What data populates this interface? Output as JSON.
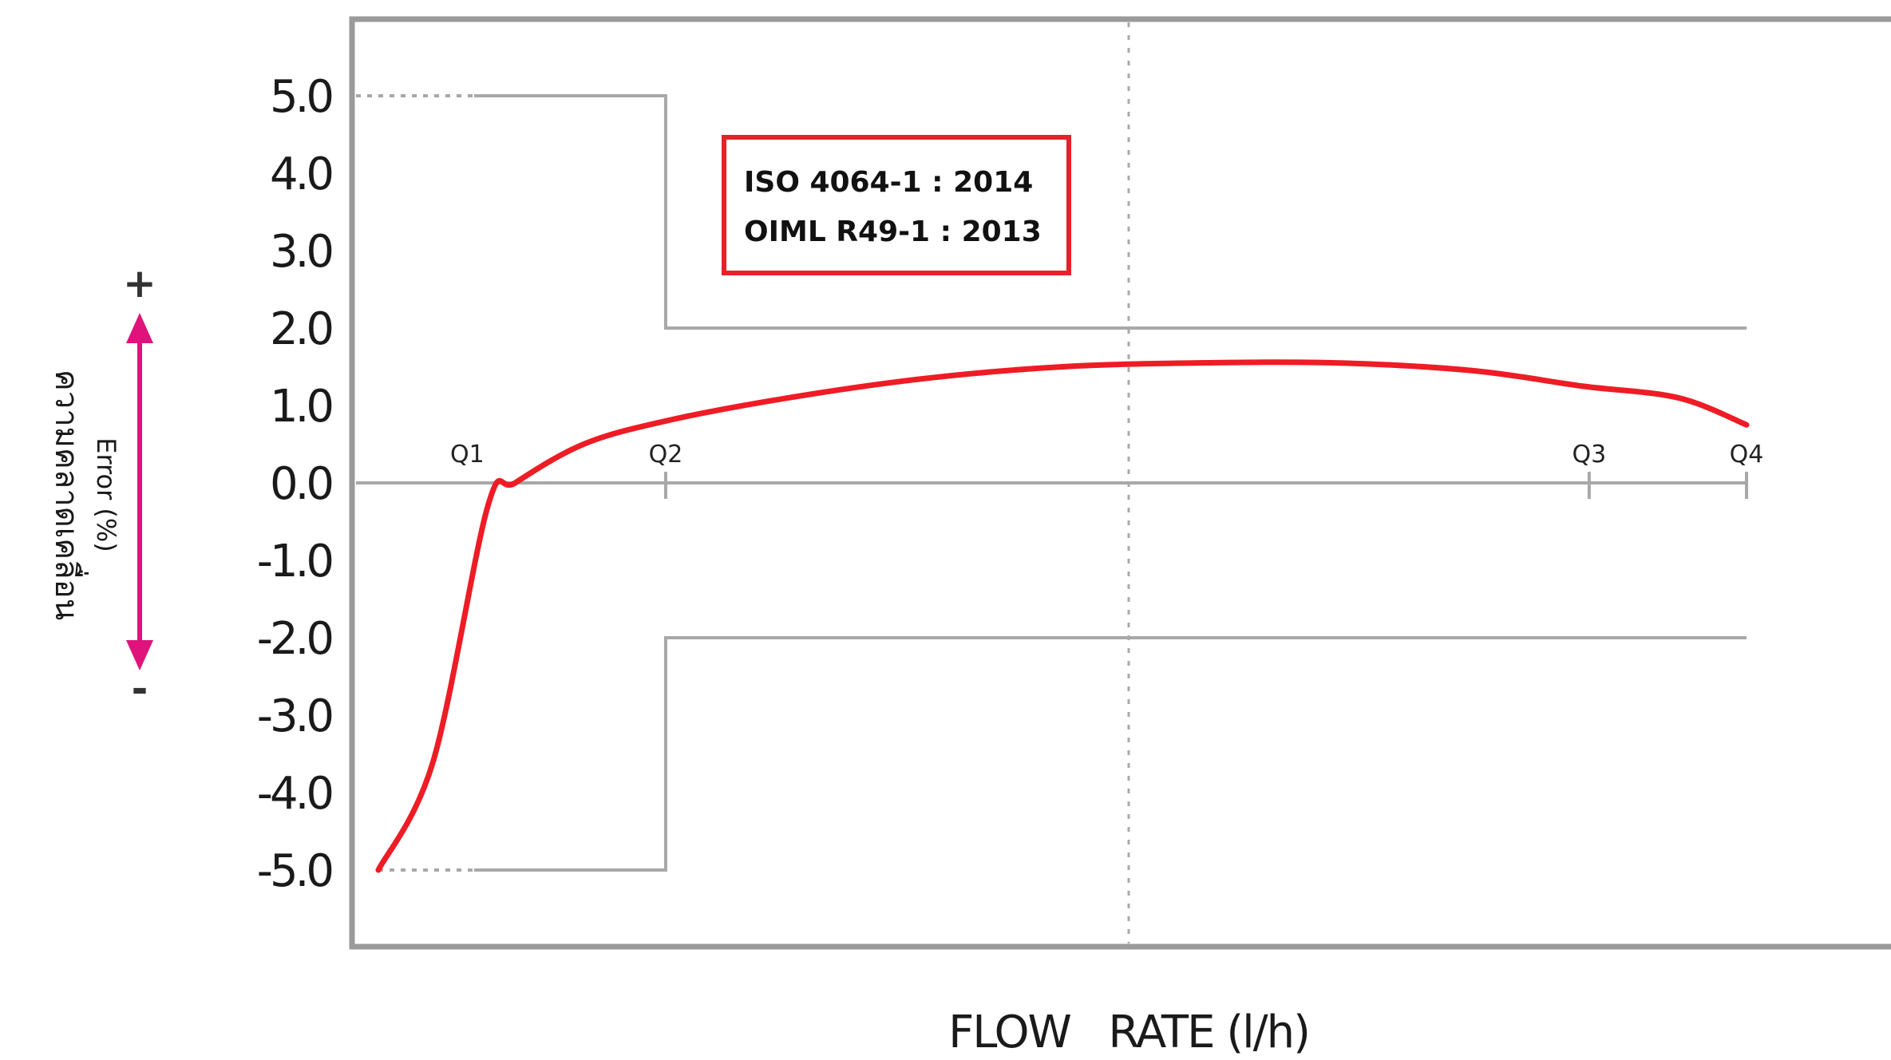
{
  "chart_data": {
    "type": "line",
    "xlabel": "FLOW   RATE (l/h)",
    "ylabel_line1": "ความคลาดเคลื่อน",
    "ylabel_line2": "Error (%)",
    "ylim": [
      -5,
      5
    ],
    "yticks": [
      "5.0",
      "4.0",
      "3.0",
      "2.0",
      "1.0",
      "0.0",
      "-1.0",
      "-2.0",
      "-3.0",
      "-4.0",
      "-5.0"
    ],
    "x_markers": [
      "Q1",
      "Q2",
      "Q3",
      "Q4"
    ],
    "series": [
      {
        "values": [
          {
            "x": 0.0,
            "y": -5.0
          },
          {
            "x": 0.04,
            "y": -3.6
          },
          {
            "x": 0.08,
            "y": -0.3
          },
          {
            "x": 0.1,
            "y": 0.0
          },
          {
            "x": 0.15,
            "y": 0.5
          },
          {
            "x": 0.21,
            "y": 0.8
          },
          {
            "x": 0.3,
            "y": 1.1
          },
          {
            "x": 0.4,
            "y": 1.35
          },
          {
            "x": 0.5,
            "y": 1.5
          },
          {
            "x": 0.6,
            "y": 1.55
          },
          {
            "x": 0.7,
            "y": 1.55
          },
          {
            "x": 0.8,
            "y": 1.45
          },
          {
            "x": 0.88,
            "y": 1.25
          },
          {
            "x": 0.95,
            "y": 1.1
          },
          {
            "x": 1.0,
            "y": 0.75
          }
        ]
      }
    ],
    "mpe_upper": [
      {
        "x": 0.0,
        "y": 5.0
      },
      {
        "x": 0.21,
        "y": 5.0
      },
      {
        "x": 0.21,
        "y": 2.0
      },
      {
        "x": 1.0,
        "y": 2.0
      }
    ],
    "mpe_lower": [
      {
        "x": 0.0,
        "y": -5.0
      },
      {
        "x": 0.21,
        "y": -5.0
      },
      {
        "x": 0.21,
        "y": -2.0
      },
      {
        "x": 1.0,
        "y": -2.0
      }
    ],
    "legend_box": [
      "ISO 4064-1 : 2014",
      "OIML R49-1 : 2013"
    ],
    "arrow_plus": "+",
    "arrow_minus": "-",
    "grid": false,
    "colors": {
      "curve": "#ee1c25",
      "arrow": "#e0137c",
      "box_border": "#e8202a",
      "axis": "#9a9a9a"
    }
  }
}
